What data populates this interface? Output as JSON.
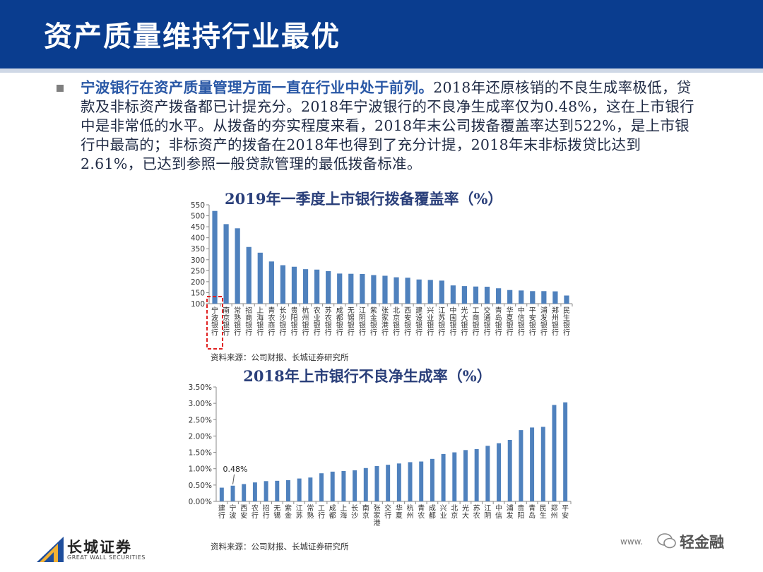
{
  "header": {
    "title": "资产质量维持行业最优"
  },
  "paragraph": {
    "lead": "宁波银行在资产质量管理方面一直在行业中处于前列。",
    "body": "2018年还原核销的不良生成率极低，贷款及非标资产拨备都已计提充分。2018年宁波银行的不良净生成率仅为0.48%，这在上市银行中是非常低的水平。从拨备的夯实程度来看，2018年末公司拨备覆盖率达到522%，是上市银行中最高的；非标资产的拨备在2018年也得到了充分计提，2018年末非标拨贷比达到2.61%，已达到参照一般贷款管理的最低拨备标准。"
  },
  "colors": {
    "header": "#0a3d8f",
    "bar": "#4f81bd",
    "highlight": "#e02020",
    "title_text": "#2a3f7a"
  },
  "footer": {
    "logo_name": "长城证券",
    "logo_en": "GREAT WALL SECURITIES",
    "watermark_url": "www.",
    "watermark": "轻金融"
  },
  "chart_data": [
    {
      "type": "bar",
      "title": "2019年一季度上市银行拨备覆盖率（%）",
      "source": "资料来源：公司财报、长城证券研究所",
      "ylim": [
        100,
        550
      ],
      "yticks": [
        100,
        150,
        200,
        250,
        300,
        350,
        400,
        450,
        500,
        550
      ],
      "grid": false,
      "highlight_index": 0,
      "categories": [
        "宁波银行",
        "南京银行",
        "常熟银行",
        "招商银行",
        "上海银行",
        "青农商行",
        "长沙银行",
        "贵阳银行",
        "杭州银行",
        "农业银行",
        "苏农银行",
        "成都银行",
        "无锡银行",
        "江阴银行",
        "紫金银行",
        "张家港行",
        "北京银行",
        "西安银行",
        "建设银行",
        "兴业银行",
        "江苏银行",
        "中国银行",
        "光大银行",
        "工商银行",
        "交通银行",
        "青岛银行",
        "华夏银行",
        "中信银行",
        "平安银行",
        "浦发银行",
        "郑州银行",
        "民生银行"
      ],
      "values": [
        522,
        462,
        443,
        358,
        332,
        292,
        275,
        268,
        257,
        255,
        248,
        237,
        236,
        235,
        230,
        227,
        220,
        218,
        210,
        208,
        205,
        183,
        180,
        178,
        177,
        170,
        162,
        160,
        157,
        157,
        156,
        137
      ]
    },
    {
      "type": "bar",
      "title": "2018年上市银行不良净生成率（%）",
      "source": "资料来源：公司财报、长城证券研究所",
      "ylim": [
        0,
        3.5
      ],
      "yticks": [
        "0.00%",
        "0.50%",
        "1.00%",
        "1.50%",
        "2.00%",
        "2.50%",
        "3.00%",
        "3.50%"
      ],
      "grid": false,
      "annotation": {
        "index": 1,
        "text": "0.48%"
      },
      "categories": [
        "建行",
        "宁波",
        "西安",
        "农行",
        "招行",
        "无锡",
        "紫金",
        "江苏",
        "常熟",
        "工行",
        "成都",
        "上海",
        "长沙",
        "南京",
        "张家港",
        "交行",
        "华夏",
        "杭州",
        "青农",
        "成都",
        "兴业",
        "北京",
        "光大",
        "苏农",
        "江阴",
        "中信",
        "浦发",
        "贵阳",
        "青岛",
        "民生",
        "郑州",
        "平安"
      ],
      "values": [
        0.42,
        0.48,
        0.53,
        0.58,
        0.62,
        0.63,
        0.65,
        0.7,
        0.73,
        0.86,
        0.91,
        0.93,
        0.95,
        1.02,
        1.08,
        1.12,
        1.16,
        1.2,
        1.22,
        1.3,
        1.45,
        1.5,
        1.57,
        1.6,
        1.7,
        1.78,
        1.88,
        2.18,
        2.26,
        2.28,
        2.95,
        3.03
      ]
    }
  ]
}
